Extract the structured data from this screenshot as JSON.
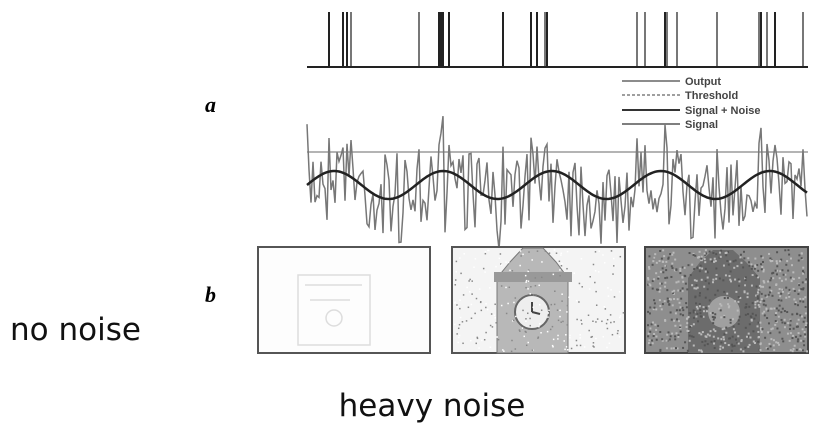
{
  "panels": {
    "a": {
      "label": "a",
      "legend": [
        "Output",
        "Threshold",
        "Signal + Noise",
        "Signal"
      ]
    },
    "b": {
      "label": "b"
    }
  },
  "captions": {
    "left": "no noise",
    "bottom": "heavy noise"
  }
}
